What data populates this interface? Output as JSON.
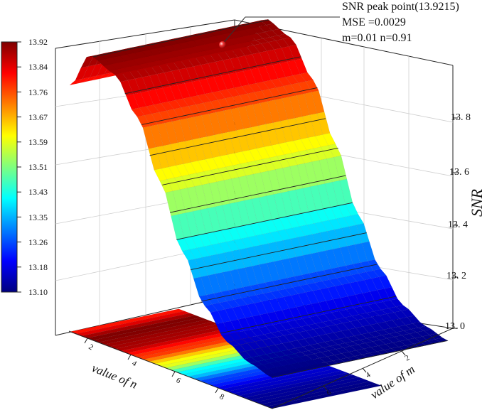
{
  "chart_data": {
    "type": "surface3d",
    "colormap": "jet",
    "zlim": [
      13.0,
      13.9215
    ],
    "annotation": {
      "lines": [
        "SNR peak point(13.9215)",
        "MSE =0.0029",
        "m=0.01 n=0.91"
      ],
      "peak": {
        "m": 0.01,
        "n": 0.91,
        "snr": 13.9215
      }
    },
    "z_axis": {
      "title": "SNR",
      "ticks": [
        "13. 0",
        "13. 2",
        "13. 4",
        "13. 6",
        "13. 8"
      ]
    },
    "n_axis": {
      "title": "value of n",
      "ticks": [
        "2",
        "4",
        "6",
        "8"
      ]
    },
    "m_axis": {
      "title": "value of m",
      "ticks": [
        "2",
        "4",
        "6"
      ]
    },
    "colorbar": {
      "labels": [
        "13.92",
        "13.84",
        "13.76",
        "13.67",
        "13.59",
        "13.51",
        "13.43",
        "13.35",
        "13.26",
        "13.18",
        "13.10"
      ]
    },
    "profile_n": [
      {
        "n": 0.0,
        "snr": 13.8
      },
      {
        "n": 0.91,
        "snr": 13.9215
      },
      {
        "n": 2.0,
        "snr": 13.89
      },
      {
        "n": 3.0,
        "snr": 13.78
      },
      {
        "n": 4.0,
        "snr": 13.6
      },
      {
        "n": 5.0,
        "snr": 13.4
      },
      {
        "n": 6.0,
        "snr": 13.25
      },
      {
        "n": 7.0,
        "snr": 13.16
      },
      {
        "n": 8.0,
        "snr": 13.12
      },
      {
        "n": 9.0,
        "snr": 13.1
      }
    ],
    "m_range": [
      0,
      7
    ]
  }
}
